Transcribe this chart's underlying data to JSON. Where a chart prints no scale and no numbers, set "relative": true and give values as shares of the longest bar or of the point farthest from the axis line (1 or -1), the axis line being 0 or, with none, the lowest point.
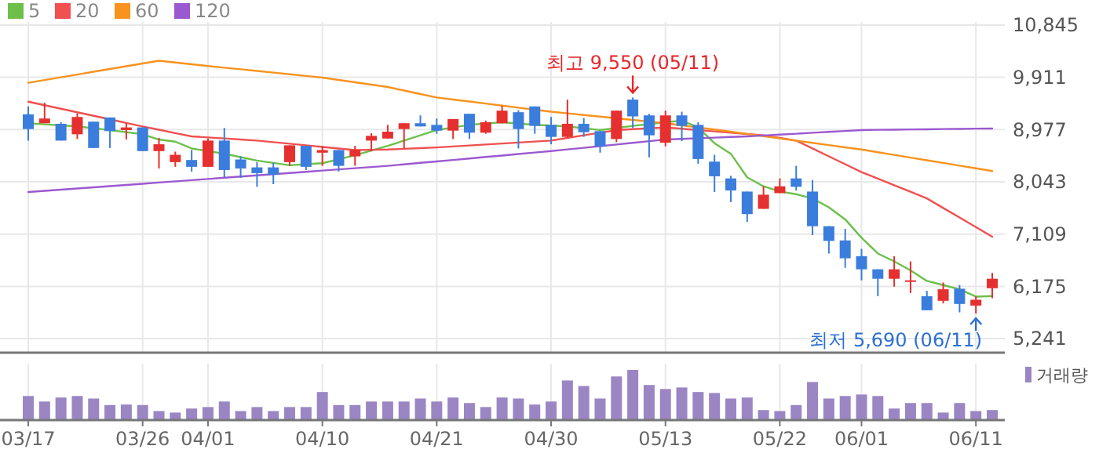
{
  "chart_data": [
    {
      "type": "candlestick",
      "categories": [
        "03/17",
        null,
        null,
        null,
        null,
        null,
        null,
        "03/26",
        null,
        null,
        null,
        "04/01",
        null,
        null,
        null,
        null,
        null,
        null,
        "04/10",
        null,
        null,
        null,
        null,
        null,
        null,
        "04/21",
        null,
        null,
        null,
        null,
        null,
        null,
        "04/30",
        null,
        null,
        null,
        null,
        null,
        null,
        "05/13",
        null,
        null,
        null,
        null,
        null,
        null,
        "05/22",
        null,
        null,
        null,
        null,
        "06/01",
        null,
        null,
        null,
        null,
        null,
        null,
        "06/11",
        null
      ],
      "ohlc": [
        [
          9249,
          9390,
          8780,
          8986
        ],
        [
          9090,
          9456,
          9090,
          9174
        ],
        [
          9080,
          9108,
          8780,
          8780
        ],
        [
          8893,
          9268,
          8808,
          9202
        ],
        [
          9118,
          9118,
          8648,
          8648
        ],
        [
          9193,
          9193,
          8648,
          8949
        ],
        [
          8968,
          9090,
          8799,
          9015
        ],
        [
          9015,
          9015,
          8592,
          8592
        ],
        [
          8592,
          8827,
          8282,
          8714
        ],
        [
          8395,
          8583,
          8311,
          8526
        ],
        [
          8433,
          8611,
          8226,
          8311
        ],
        [
          8311,
          8817,
          8311,
          8780
        ],
        [
          8780,
          9005,
          8123,
          8254
        ],
        [
          8442,
          8498,
          8113,
          8282
        ],
        [
          8301,
          8395,
          7954,
          8198
        ],
        [
          8301,
          8386,
          8001,
          8170
        ],
        [
          8395,
          8695,
          8329,
          8695
        ],
        [
          8686,
          8686,
          8254,
          8311
        ],
        [
          8564,
          8686,
          8329,
          8611
        ],
        [
          8611,
          8611,
          8226,
          8329
        ],
        [
          8498,
          8686,
          8329,
          8611
        ],
        [
          8780,
          8911,
          8592,
          8864
        ],
        [
          8817,
          9061,
          8817,
          8939
        ],
        [
          8986,
          9090,
          8639,
          9090
        ],
        [
          9090,
          9230,
          9033,
          9033
        ],
        [
          9061,
          9174,
          8902,
          8958
        ],
        [
          8958,
          9165,
          8808,
          9165
        ],
        [
          9259,
          9259,
          8808,
          8921
        ],
        [
          8921,
          9137,
          8902,
          9108
        ],
        [
          9090,
          9399,
          9090,
          9315
        ],
        [
          9287,
          9324,
          8639,
          8986
        ],
        [
          9390,
          9390,
          8902,
          9043
        ],
        [
          9061,
          9202,
          8714,
          8846
        ],
        [
          8846,
          9512,
          8827,
          9080
        ],
        [
          9080,
          9183,
          8846,
          8930
        ],
        [
          8949,
          8949,
          8564,
          8677
        ],
        [
          8808,
          9315,
          8752,
          9315
        ],
        [
          9512,
          9550,
          9005,
          9212
        ],
        [
          9230,
          9259,
          8480,
          8874
        ],
        [
          8742,
          9315,
          8677,
          9230
        ],
        [
          9230,
          9296,
          8770,
          9043
        ],
        [
          9061,
          9108,
          8367,
          8451
        ],
        [
          8404,
          8526,
          7860,
          8142
        ],
        [
          8104,
          8151,
          7682,
          7888
        ],
        [
          7869,
          7869,
          7325,
          7466
        ],
        [
          7560,
          7963,
          7560,
          7813
        ],
        [
          7841,
          8104,
          7841,
          7963
        ],
        [
          8104,
          8329,
          7888,
          7954
        ],
        [
          7869,
          8076,
          7090,
          7250
        ],
        [
          7250,
          7250,
          6762,
          6987
        ],
        [
          6996,
          7203,
          6508,
          6677
        ],
        [
          6715,
          6846,
          6283,
          6480
        ],
        [
          6480,
          6480,
          5999,
          6311
        ],
        [
          6311,
          6715,
          6170,
          6480
        ],
        [
          6255,
          6621,
          6056,
          6283
        ],
        [
          5999,
          6095,
          5748,
          5748
        ],
        [
          5917,
          6245,
          5870,
          6123
        ],
        [
          6133,
          6198,
          5710,
          5861
        ],
        [
          5832,
          5999,
          5690,
          5936
        ],
        [
          6142,
          6414,
          5964,
          6311
        ]
      ],
      "colors": [
        "#3b7ddd",
        "#e5302f",
        "#3b7ddd",
        "#e5302f",
        "#3b7ddd",
        "#3b7ddd",
        "#e5302f",
        "#3b7ddd",
        "#e5302f",
        "#e5302f",
        "#3b7ddd",
        "#e5302f",
        "#3b7ddd",
        "#3b7ddd",
        "#3b7ddd",
        "#3b7ddd",
        "#e5302f",
        "#3b7ddd",
        "#e5302f",
        "#3b7ddd",
        "#e5302f",
        "#e5302f",
        "#e5302f",
        "#e5302f",
        "#3b7ddd",
        "#3b7ddd",
        "#e5302f",
        "#3b7ddd",
        "#e5302f",
        "#e5302f",
        "#3b7ddd",
        "#3b7ddd",
        "#3b7ddd",
        "#e5302f",
        "#3b7ddd",
        "#3b7ddd",
        "#e5302f",
        "#3b7ddd",
        "#3b7ddd",
        "#e5302f",
        "#3b7ddd",
        "#3b7ddd",
        "#3b7ddd",
        "#3b7ddd",
        "#3b7ddd",
        "#e5302f",
        "#e5302f",
        "#3b7ddd",
        "#3b7ddd",
        "#3b7ddd",
        "#3b7ddd",
        "#3b7ddd",
        "#3b7ddd",
        "#e5302f",
        "#e5302f",
        "#3b7ddd",
        "#e5302f",
        "#3b7ddd",
        "#e5302f",
        "#e5302f"
      ],
      "series": [
        {
          "type": "line",
          "name": "5",
          "color": "#6cc04a",
          "values": [
            9090,
            9071,
            9052,
            9033,
            9000,
            8968,
            8930,
            8893,
            8799,
            8761,
            8639,
            8592,
            8545,
            8484,
            8423,
            8381,
            8339,
            8358,
            8376,
            8447,
            8517,
            8602,
            8686,
            8780,
            8874,
            8968,
            9015,
            9061,
            9085,
            9108,
            9085,
            9061,
            9047,
            9033,
            9000,
            8968,
            9005,
            9043,
            9075,
            9108,
            9137,
            9015,
            8733,
            8545,
            8123,
            7963,
            7869,
            7822,
            7747,
            7588,
            7372,
            7043,
            6762,
            6621,
            6461,
            6273,
            6198,
            6123,
            5992,
            6001
          ]
        },
        {
          "type": "line",
          "name": "20",
          "color": "#f05050",
          "values": [
            9475,
            9412,
            9349,
            9286,
            9223,
            9160,
            9096,
            9033,
            8974,
            8914,
            8855,
            8836,
            8818,
            8799,
            8780,
            8752,
            8724,
            8696,
            8667,
            8639,
            8611,
            8615,
            8620,
            8633,
            8645,
            8658,
            8675,
            8693,
            8710,
            8728,
            8745,
            8763,
            8780,
            8827,
            8874,
            8921,
            8968,
            8984,
            8999,
            9015,
            8992,
            8968,
            8945,
            8921,
            8898,
            8874,
            8827,
            8780,
            8639,
            8498,
            8358,
            8217,
            8100,
            7982,
            7865,
            7747,
            7576,
            7405,
            7233,
            7062
          ]
        },
        {
          "type": "line",
          "name": "60",
          "color": "#f7931e",
          "values": [
            9812,
            9861,
            9911,
            9960,
            10010,
            10059,
            10108,
            10158,
            10207,
            10176,
            10144,
            10113,
            10083,
            10054,
            10024,
            9995,
            9965,
            9936,
            9906,
            9864,
            9822,
            9779,
            9737,
            9675,
            9612,
            9550,
            9514,
            9478,
            9441,
            9405,
            9369,
            9332,
            9296,
            9267,
            9237,
            9208,
            9178,
            9149,
            9119,
            9090,
            9052,
            9015,
            8977,
            8939,
            8899,
            8859,
            8819,
            8779,
            8740,
            8700,
            8660,
            8620,
            8572,
            8524,
            8476,
            8428,
            8380,
            8332,
            8284,
            8236
          ]
        },
        {
          "type": "line",
          "name": "120",
          "color": "#9b59d0",
          "values": [
            7860,
            7881,
            7903,
            7924,
            7945,
            7967,
            7988,
            8009,
            8031,
            8052,
            8073,
            8094,
            8116,
            8137,
            8158,
            8180,
            8201,
            8222,
            8244,
            8265,
            8286,
            8308,
            8329,
            8355,
            8382,
            8408,
            8434,
            8460,
            8487,
            8513,
            8540,
            8566,
            8592,
            8622,
            8651,
            8681,
            8710,
            8740,
            8769,
            8799,
            8810,
            8822,
            8833,
            8844,
            8855,
            8871,
            8887,
            8903,
            8920,
            8936,
            8952,
            8968,
            8972,
            8975,
            8979,
            8982,
            8986,
            8989,
            8993,
            8996
          ]
        }
      ],
      "ylim": [
        4990,
        10900
      ],
      "yticks": [
        {
          "value": 10845,
          "label": "10,845"
        },
        {
          "value": 9911,
          "label": "9,911"
        },
        {
          "value": 8977,
          "label": "8,977"
        },
        {
          "value": 8043,
          "label": "8,043"
        },
        {
          "value": 7109,
          "label": "7,109"
        },
        {
          "value": 6175,
          "label": "6,175"
        },
        {
          "value": 5241,
          "label": "5,241"
        }
      ],
      "grid": true,
      "legend": "top left",
      "tick_labels": "y",
      "annotations": [
        {
          "text": "최고 9,550 (05/11)",
          "y": 9550
        },
        {
          "text": "최저 5,690 (06/11)",
          "x": "06/11",
          "y": 5690
        }
      ]
    },
    {
      "type": "bar",
      "relative": true,
      "categories": [
        "03/17",
        null,
        null,
        null,
        null,
        null,
        null,
        "03/26",
        null,
        null,
        null,
        "04/01",
        null,
        null,
        null,
        null,
        null,
        null,
        "04/10",
        null,
        null,
        null,
        null,
        null,
        null,
        "04/21",
        null,
        null,
        null,
        null,
        null,
        null,
        "04/30",
        null,
        null,
        null,
        null,
        null,
        null,
        "05/13",
        null,
        null,
        null,
        null,
        null,
        null,
        "05/22",
        null,
        null,
        null,
        null,
        "06/01",
        null,
        null,
        null,
        null,
        null,
        null,
        "06/11",
        null
      ],
      "series": [
        {
          "name": "거래량",
          "color": "#9b86c4",
          "values": [
            0.48,
            0.37,
            0.45,
            0.48,
            0.43,
            0.3,
            0.31,
            0.3,
            0.18,
            0.15,
            0.23,
            0.26,
            0.37,
            0.18,
            0.26,
            0.18,
            0.26,
            0.26,
            0.56,
            0.3,
            0.3,
            0.37,
            0.37,
            0.37,
            0.43,
            0.37,
            0.45,
            0.34,
            0.26,
            0.45,
            0.43,
            0.31,
            0.37,
            0.79,
            0.68,
            0.43,
            0.87,
            1,
            0.7,
            0.62,
            0.65,
            0.56,
            0.54,
            0.43,
            0.45,
            0.2,
            0.18,
            0.3,
            0.76,
            0.43,
            0.48,
            0.51,
            0.48,
            0.23,
            0.34,
            0.34,
            0.15,
            0.34,
            0.18,
            0.2
          ]
        }
      ],
      "grid": "x",
      "legend": "top right"
    }
  ]
}
